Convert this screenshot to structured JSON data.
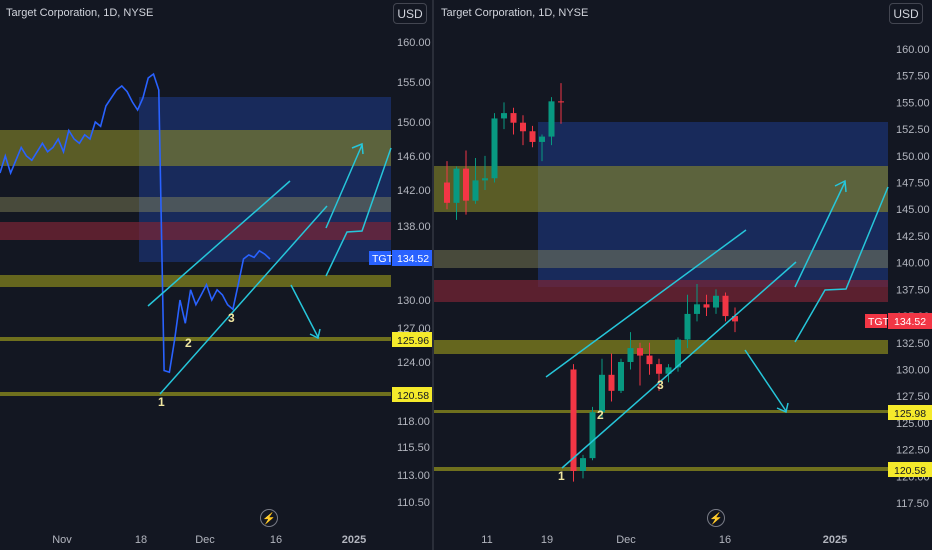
{
  "chart_data": [
    {
      "type": "line",
      "title": "Target Corporation, 1D, NYSE",
      "currency": "USD",
      "ticker": "TGT",
      "last_price": "134.52",
      "yticks": [
        "160.00",
        "155.00",
        "150.00",
        "146.00",
        "142.00",
        "138.00",
        "134.00",
        "130.00",
        "127.00",
        "124.00",
        "120.00",
        "118.00",
        "115.50",
        "113.00",
        "110.50"
      ],
      "xticks": [
        "Nov",
        "18",
        "Dec",
        "16",
        "2025"
      ],
      "levels": [
        {
          "label": "125.96",
          "bg": "#f5ea2b"
        },
        {
          "label": "120.58",
          "bg": "#f5ea2b"
        }
      ],
      "price_points": [
        144,
        146,
        144,
        145.5,
        147,
        146,
        145.5,
        146.5,
        147.5,
        146.5,
        147,
        148,
        146.5,
        149,
        148,
        147.5,
        148.5,
        148,
        150,
        149.5,
        152,
        153,
        154,
        154.5,
        153.8,
        152.5,
        151.5,
        153,
        155.5,
        156,
        154,
        123,
        122.8,
        126,
        130,
        127.5,
        131,
        129.5,
        130.5,
        131.5,
        130,
        131,
        130.5,
        129.5,
        129,
        131.5,
        134,
        134.5,
        134.2,
        135,
        134.6,
        134
      ],
      "wave_labels": [
        "1",
        "2",
        "3"
      ],
      "colors": {
        "line": "#2962ff",
        "channel": "#26c6da",
        "zone_yellow": "#7a7a1e",
        "zone_blue": "#1e3a8a",
        "zone_red": "#6b1f2a",
        "price_tag": "#2962ff"
      }
    },
    {
      "type": "candlestick",
      "title": "Target Corporation, 1D, NYSE",
      "currency": "USD",
      "ticker": "TGT",
      "last_price": "134.52",
      "yticks": [
        "160.00",
        "157.50",
        "155.00",
        "152.50",
        "150.00",
        "147.50",
        "145.00",
        "142.50",
        "140.00",
        "137.50",
        "135.00",
        "132.50",
        "130.00",
        "127.50",
        "125.00",
        "122.50",
        "120.00",
        "117.50"
      ],
      "xticks": [
        "11",
        "19",
        "Dec",
        "16",
        "2025"
      ],
      "levels": [
        {
          "label": "125.98",
          "bg": "#f5ea2b"
        },
        {
          "label": "120.58",
          "bg": "#f5ea2b"
        }
      ],
      "candles": [
        {
          "o": 147.5,
          "h": 149.5,
          "l": 145.0,
          "c": 145.6
        },
        {
          "o": 145.6,
          "h": 149.0,
          "l": 144.0,
          "c": 148.8
        },
        {
          "o": 148.8,
          "h": 150.5,
          "l": 144.5,
          "c": 145.8
        },
        {
          "o": 145.8,
          "h": 149.8,
          "l": 145.5,
          "c": 147.7
        },
        {
          "o": 147.7,
          "h": 150.0,
          "l": 146.8,
          "c": 147.9
        },
        {
          "o": 147.9,
          "h": 154.0,
          "l": 147.5,
          "c": 153.5
        },
        {
          "o": 153.5,
          "h": 155.0,
          "l": 152.5,
          "c": 154.0
        },
        {
          "o": 154.0,
          "h": 154.5,
          "l": 152.0,
          "c": 153.1
        },
        {
          "o": 153.1,
          "h": 153.8,
          "l": 151.0,
          "c": 152.3
        },
        {
          "o": 152.3,
          "h": 152.8,
          "l": 150.8,
          "c": 151.3
        },
        {
          "o": 151.3,
          "h": 152.0,
          "l": 149.5,
          "c": 151.8
        },
        {
          "o": 151.8,
          "h": 155.5,
          "l": 151.0,
          "c": 155.1
        },
        {
          "o": 155.1,
          "h": 156.8,
          "l": 153.0,
          "c": 155.0
        },
        {
          "o": 130.0,
          "h": 130.5,
          "l": 119.5,
          "c": 120.5
        },
        {
          "o": 120.5,
          "h": 122.0,
          "l": 119.8,
          "c": 121.7
        },
        {
          "o": 121.7,
          "h": 126.5,
          "l": 121.5,
          "c": 126.0
        },
        {
          "o": 126.0,
          "h": 131.0,
          "l": 125.5,
          "c": 129.5
        },
        {
          "o": 129.5,
          "h": 131.5,
          "l": 127.0,
          "c": 128.0
        },
        {
          "o": 128.0,
          "h": 131.0,
          "l": 127.8,
          "c": 130.7
        },
        {
          "o": 130.7,
          "h": 133.5,
          "l": 130.0,
          "c": 132.0
        },
        {
          "o": 132.0,
          "h": 132.5,
          "l": 128.5,
          "c": 131.3
        },
        {
          "o": 131.3,
          "h": 132.5,
          "l": 129.5,
          "c": 130.5
        },
        {
          "o": 130.5,
          "h": 131.0,
          "l": 128.0,
          "c": 129.6
        },
        {
          "o": 129.6,
          "h": 130.5,
          "l": 128.8,
          "c": 130.2
        },
        {
          "o": 130.2,
          "h": 133.0,
          "l": 129.8,
          "c": 132.8
        },
        {
          "o": 132.8,
          "h": 137.0,
          "l": 132.0,
          "c": 135.2
        },
        {
          "o": 135.2,
          "h": 138.0,
          "l": 134.5,
          "c": 136.1
        },
        {
          "o": 136.1,
          "h": 137.0,
          "l": 135.0,
          "c": 135.8
        },
        {
          "o": 135.8,
          "h": 137.5,
          "l": 135.2,
          "c": 136.9
        },
        {
          "o": 136.9,
          "h": 137.2,
          "l": 134.5,
          "c": 135.0
        },
        {
          "o": 135.0,
          "h": 135.8,
          "l": 133.5,
          "c": 134.5
        }
      ],
      "wave_labels": [
        "1",
        "2",
        "3"
      ],
      "colors": {
        "up": "#089981",
        "down": "#f23645",
        "channel": "#26c6da",
        "zone_yellow": "#7a7a1e",
        "zone_blue": "#1e3a8a",
        "zone_red": "#6b1f2a",
        "price_tag": "#f23645"
      }
    }
  ]
}
